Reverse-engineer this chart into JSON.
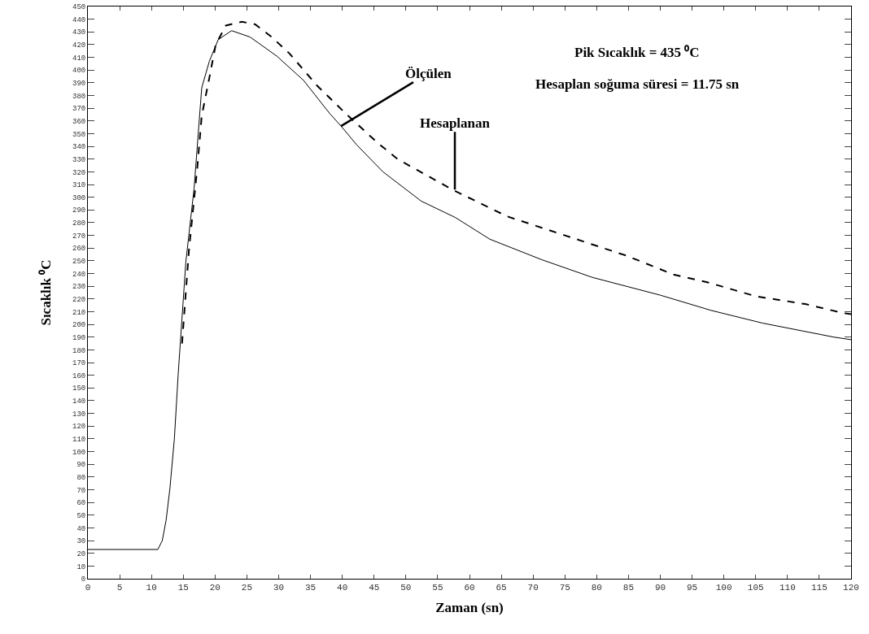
{
  "chart_data": {
    "type": "line",
    "xlabel": "Zaman (sn)",
    "ylabel": "Sıcaklık ⁰C",
    "xlim": [
      0,
      120
    ],
    "xticks": [
      0,
      5,
      10,
      15,
      20,
      25,
      30,
      35,
      40,
      45,
      50,
      55,
      60,
      65,
      70,
      75,
      80,
      85,
      90,
      95,
      100,
      105,
      110,
      115,
      120
    ],
    "ylim": [
      0,
      450
    ],
    "yticks": [
      0,
      10,
      20,
      30,
      40,
      50,
      60,
      70,
      80,
      90,
      100,
      110,
      120,
      130,
      140,
      150,
      160,
      170,
      180,
      190,
      200,
      210,
      220,
      230,
      240,
      250,
      260,
      270,
      280,
      290,
      300,
      310,
      320,
      330,
      340,
      350,
      360,
      370,
      380,
      390,
      400,
      410,
      420,
      430,
      440,
      450
    ],
    "series": [
      {
        "color": "#000000",
        "line_style": "solid",
        "x": [
          0,
          11,
          11.7,
          12.3,
          12.9,
          13.6,
          14.2,
          15.4,
          16.7,
          17.9,
          19.1,
          20.5,
          22.6,
          25.5,
          29.7,
          33.9,
          38,
          39.8,
          42.3,
          46.4,
          52.4,
          57.8,
          63.2,
          71.3,
          79.3,
          90,
          98,
          106.1,
          117.3,
          120
        ],
        "values": [
          23,
          23,
          30,
          46,
          71,
          110,
          161,
          249,
          307,
          386,
          407,
          424,
          431,
          426,
          411,
          392,
          366,
          356,
          341,
          320,
          297,
          284,
          267,
          251,
          237,
          223,
          211,
          201,
          190,
          188
        ]
      },
      {
        "color": "#000000",
        "line_style": "dashed",
        "x": [
          14.8,
          15.9,
          17.2,
          17.9,
          19.1,
          20.1,
          21.7,
          24.2,
          26.3,
          28.9,
          31.7,
          36,
          40.5,
          45.5,
          48.7,
          57.3,
          65.9,
          75,
          84.7,
          92.2,
          97.5,
          105.1,
          112.8,
          118.7,
          120
        ],
        "values": [
          185,
          259,
          323,
          364,
          394,
          420,
          435,
          438,
          436,
          426,
          413,
          388,
          366,
          343,
          330,
          306,
          285,
          270,
          254,
          239,
          233,
          222,
          216,
          209,
          208
        ]
      }
    ],
    "annotations": [
      {
        "text": "Ölçülen",
        "x": 39.8,
        "y": 356
      },
      {
        "text": "Hesaplanan",
        "x": 57.7,
        "y": 306
      },
      "Pik Sıcaklık = 435 ⁰C",
      "Hesaplan soğuma süresi = 11.75 sn"
    ]
  }
}
